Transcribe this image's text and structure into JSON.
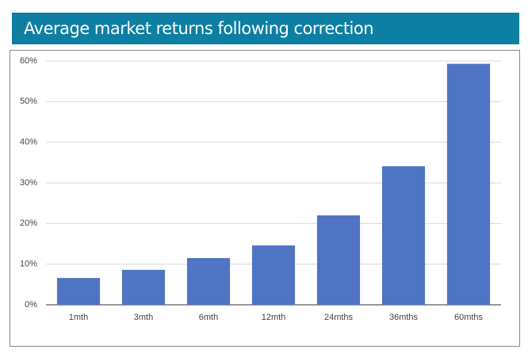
{
  "chart_data": {
    "type": "bar",
    "title": "Average market returns following correction",
    "categories": [
      "1mth",
      "3mth",
      "6mth",
      "12mth",
      "24mths",
      "36mths",
      "60mths"
    ],
    "values": [
      6.6,
      8.6,
      11.5,
      14.6,
      22.0,
      34.1,
      59.3
    ],
    "color": "#4f74c4",
    "ylim": [
      0,
      60
    ],
    "yticks": [
      {
        "value": 0,
        "label": "0%"
      },
      {
        "value": 10,
        "label": "10%"
      },
      {
        "value": 20,
        "label": "20%"
      },
      {
        "value": 30,
        "label": "30%"
      },
      {
        "value": 40,
        "label": "40%"
      },
      {
        "value": 50,
        "label": "50%"
      },
      {
        "value": 60,
        "label": "60%"
      }
    ],
    "grid": true
  }
}
